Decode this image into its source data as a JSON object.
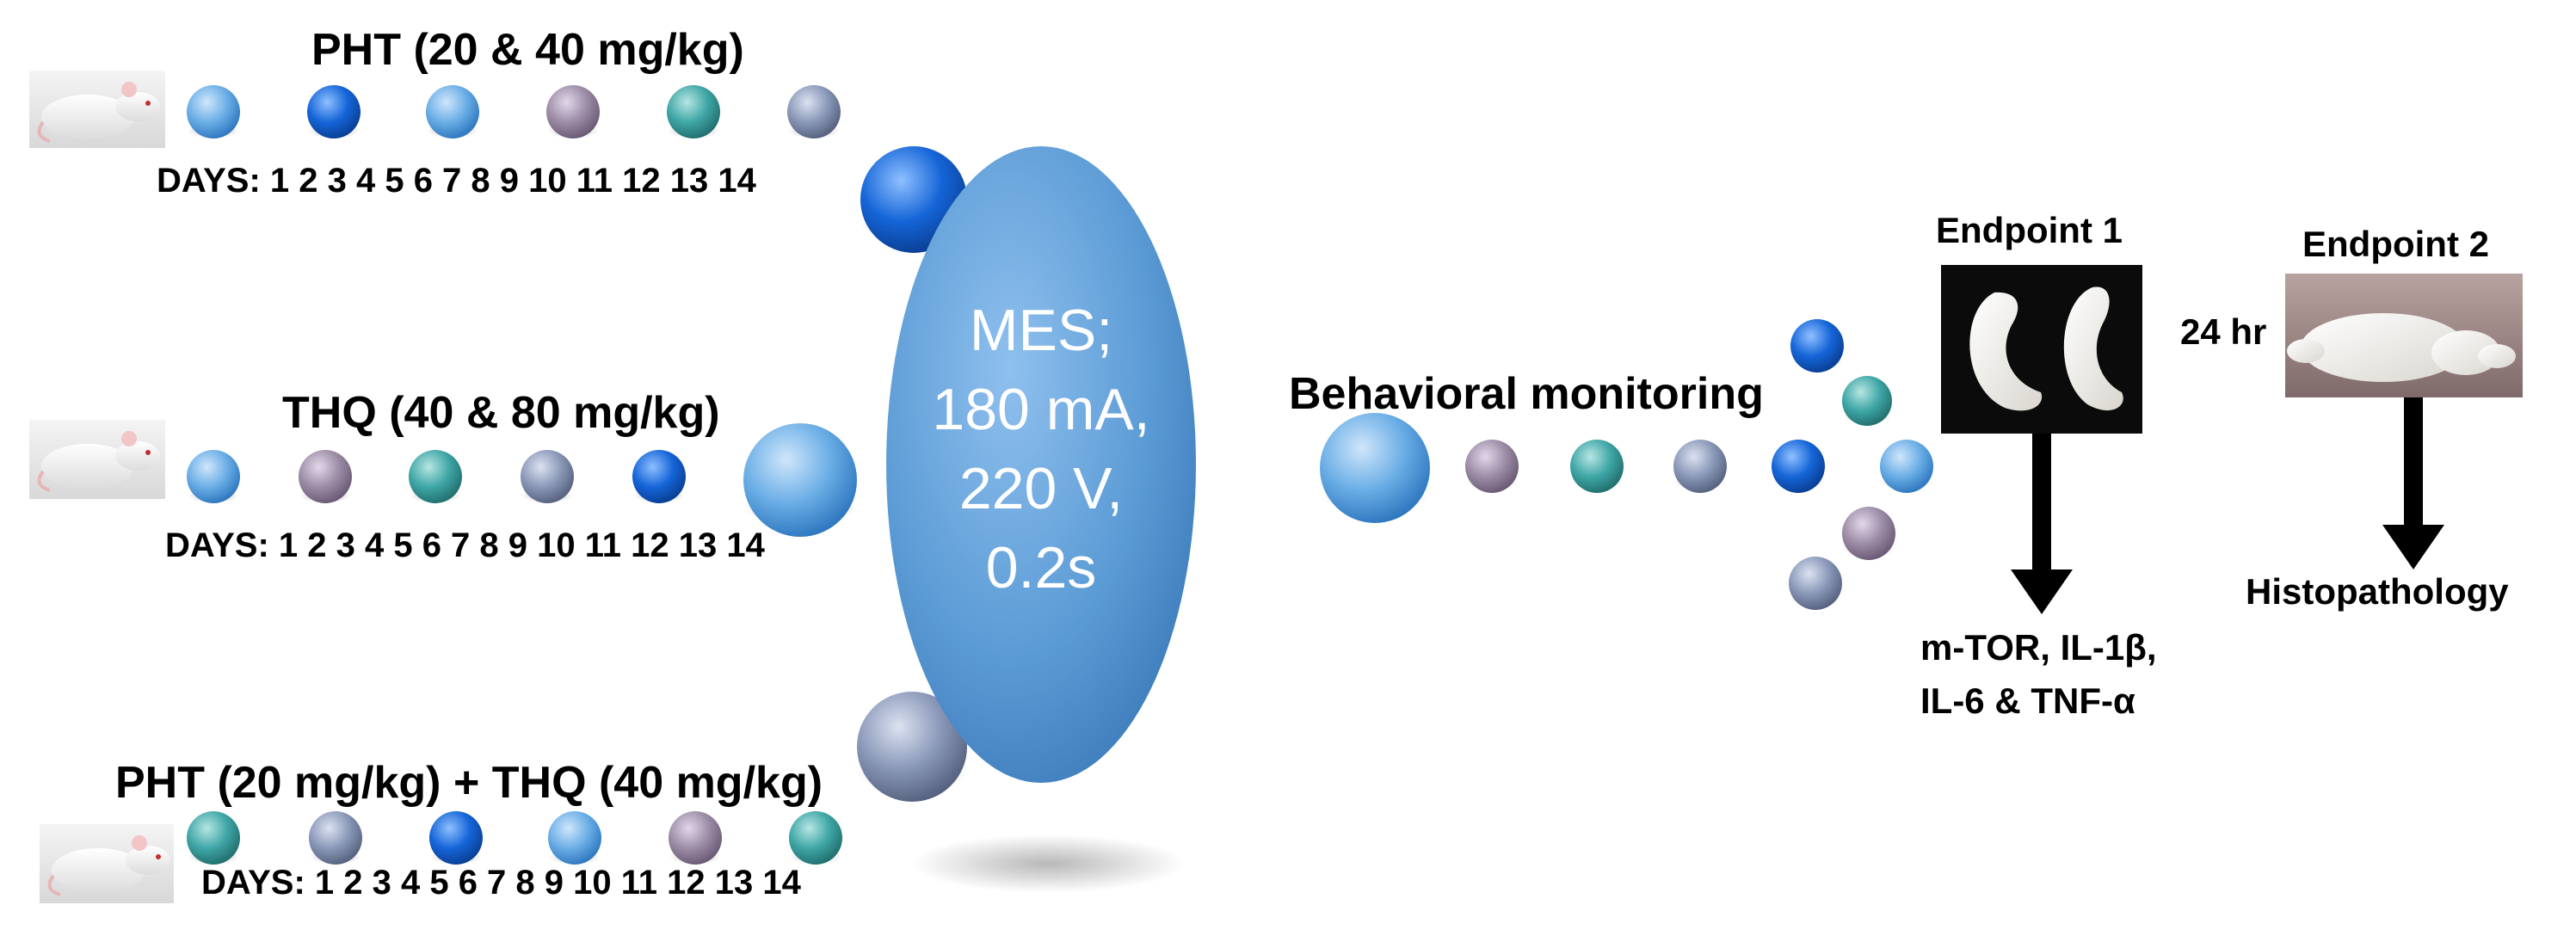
{
  "palette": {
    "light_blue": "#6BAEE6",
    "deep_blue": "#1565D8",
    "mauve": "#9C8CA6",
    "teal": "#3FA6A6",
    "slate": "#8A98B8",
    "mes_ellipse": "#5B9BD5"
  },
  "groups": [
    {
      "title": "PHT (20 & 40 mg/kg)",
      "days_label": "DAYS: 1 2 3 4 5 6 7 8 9 10 11 12 13 14",
      "icon": "rat-photo",
      "dose_balls": [
        "light_blue",
        "deep_blue",
        "light_blue",
        "mauve",
        "teal",
        "slate"
      ]
    },
    {
      "title": "THQ (40 & 80 mg/kg)",
      "days_label": "DAYS: 1 2 3 4 5 6 7 8 9 10 11 12 13 14",
      "icon": "rat-photo",
      "dose_balls": [
        "light_blue",
        "mauve",
        "teal",
        "slate",
        "deep_blue"
      ]
    },
    {
      "title": "PHT (20 mg/kg) + THQ (40 mg/kg)",
      "days_label": "DAYS: 1 2 3 4 5 6 7 8 9 10 11 12 13 14",
      "icon": "rat-photo",
      "dose_balls": [
        "teal",
        "slate",
        "deep_blue",
        "light_blue",
        "mauve",
        "teal"
      ]
    }
  ],
  "mes": {
    "lines": [
      "MES;",
      "180 mA,",
      "220 V,",
      "0.2s"
    ]
  },
  "behavior_label": "Behavioral monitoring",
  "endpoint1": {
    "title": "Endpoint 1",
    "image": "hippocampus-photo",
    "outcome_lines": [
      "m-TOR, IL-1β,",
      "IL-6 & TNF-α"
    ]
  },
  "interval_label": "24 hr",
  "endpoint2": {
    "title": "Endpoint 2",
    "image": "brain-photo",
    "outcome": "Histopathology"
  }
}
